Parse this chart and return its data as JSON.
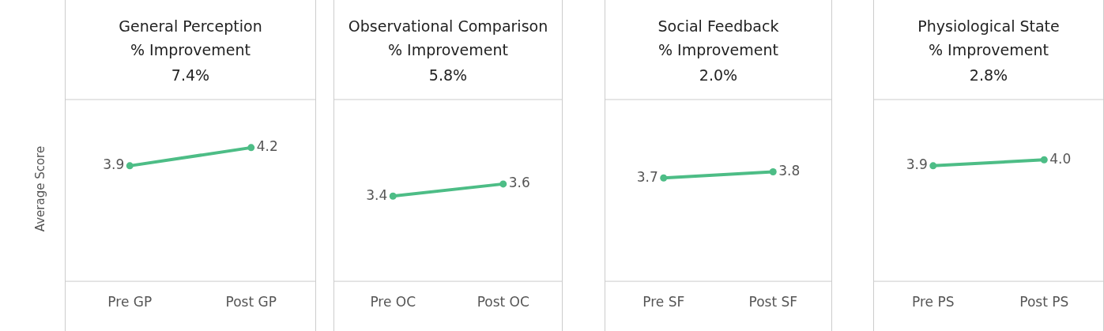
{
  "chart_data": [
    {
      "type": "line",
      "title": "General Perception",
      "subtitle": "% Improvement",
      "annotations": [
        "7.4%"
      ],
      "ylabel": "Average Score",
      "categories": [
        "Pre GP",
        "Post GP"
      ],
      "series": [
        {
          "color": "#4dbd86",
          "values": [
            3.9,
            4.2
          ]
        }
      ],
      "ylim": [
        2,
        5
      ],
      "tick_labels": "x",
      "grid": false,
      "legend": false,
      "marker": "circle",
      "data_labels": true
    },
    {
      "type": "line",
      "title": "Observational Comparison",
      "subtitle": "% Improvement",
      "annotations": [
        "5.8%"
      ],
      "categories": [
        "Pre OC",
        "Post OC"
      ],
      "series": [
        {
          "color": "#4dbd86",
          "values": [
            3.4,
            3.6
          ]
        }
      ],
      "ylim": [
        2,
        5
      ],
      "tick_labels": "x",
      "grid": false,
      "legend": false,
      "marker": "circle",
      "data_labels": true
    },
    {
      "type": "line",
      "title": "Social Feedback",
      "subtitle": "% Improvement",
      "annotations": [
        "2.0%"
      ],
      "categories": [
        "Pre SF",
        "Post SF"
      ],
      "series": [
        {
          "color": "#4dbd86",
          "values": [
            3.7,
            3.8
          ]
        }
      ],
      "ylim": [
        2,
        5
      ],
      "tick_labels": "x",
      "grid": false,
      "legend": false,
      "marker": "circle",
      "data_labels": true
    },
    {
      "type": "line",
      "title": "Physiological State",
      "subtitle": "% Improvement",
      "annotations": [
        "2.8%"
      ],
      "categories": [
        "Pre PS",
        "Post PS"
      ],
      "series": [
        {
          "color": "#4dbd86",
          "values": [
            3.9,
            4.0
          ],
          "value_labels": [
            "3.9",
            "4.0"
          ]
        }
      ],
      "ylim": [
        2,
        5
      ],
      "tick_labels": "x",
      "grid": false,
      "legend": false,
      "marker": "circle"
    }
  ]
}
